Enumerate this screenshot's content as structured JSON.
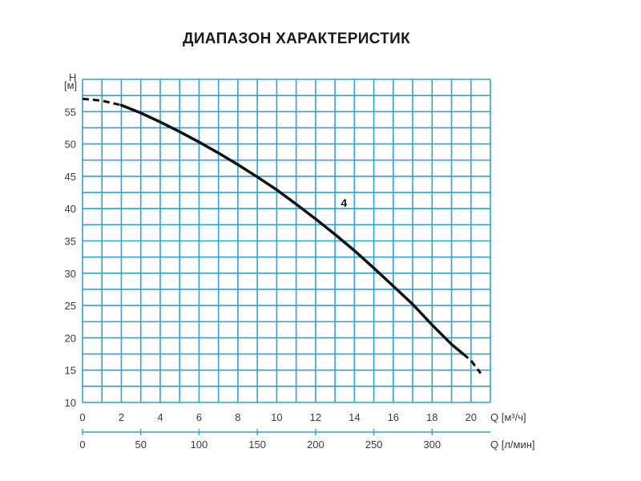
{
  "chart_data": {
    "type": "line",
    "title": "ДИАПАЗОН ХАРАКТЕРИСТИК",
    "ylabel_top": "H",
    "ylabel_unit": "[м]",
    "xlabel": "Q [м³/ч]",
    "xlabel2": "Q [л/мин]",
    "xlim": [
      0,
      21
    ],
    "ylim": [
      10,
      60
    ],
    "xticks": [
      0,
      2,
      4,
      6,
      8,
      10,
      12,
      14,
      16,
      18,
      20
    ],
    "yticks": [
      10,
      15,
      20,
      25,
      30,
      35,
      40,
      45,
      50,
      55
    ],
    "x2ticks": [
      0,
      50,
      100,
      150,
      200,
      250,
      300
    ],
    "grid": true,
    "series": [
      {
        "name": "4",
        "x": [
          0,
          1,
          2,
          3,
          4,
          5,
          6,
          7,
          8,
          9,
          10,
          11,
          12,
          13,
          14,
          15,
          16,
          17,
          18,
          19,
          19.6,
          20,
          20.5
        ],
        "y": [
          57.0,
          56.7,
          56.0,
          54.8,
          53.4,
          51.9,
          50.3,
          48.6,
          46.8,
          44.9,
          42.9,
          40.7,
          38.4,
          36.0,
          33.5,
          30.8,
          28.0,
          25.2,
          22.0,
          19.0,
          17.5,
          16.5,
          14.5
        ],
        "solid_range": [
          2,
          19.6
        ],
        "color": "#111111"
      }
    ],
    "grid_color": "#2fa3cf"
  }
}
